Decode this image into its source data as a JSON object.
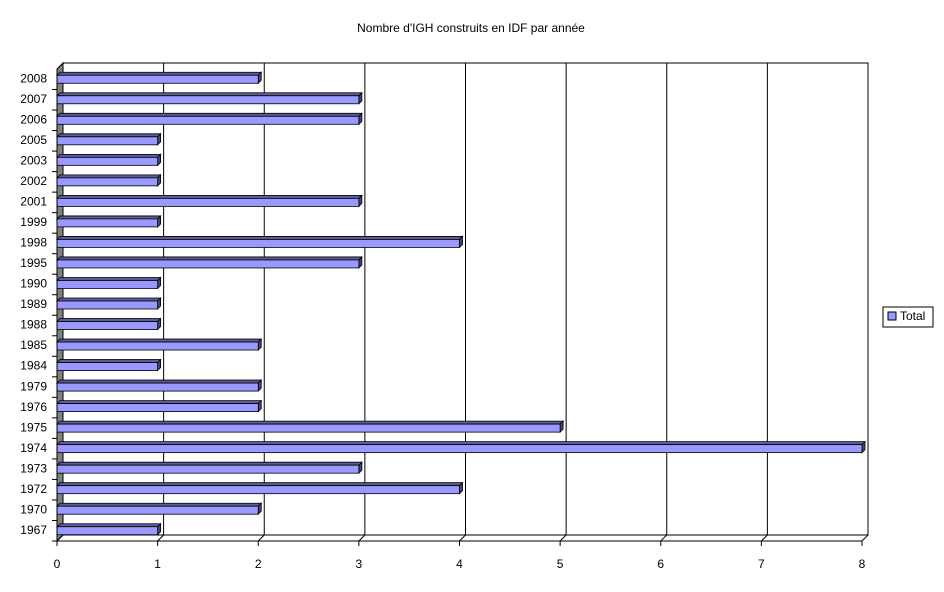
{
  "chart_data": {
    "type": "bar3d-horizontal",
    "title": "Nombre d'IGH construits en IDF par année",
    "categories": [
      "1967",
      "1970",
      "1972",
      "1973",
      "1974",
      "1975",
      "1976",
      "1979",
      "1984",
      "1985",
      "1988",
      "1989",
      "1990",
      "1995",
      "1998",
      "1999",
      "2001",
      "2002",
      "2003",
      "2005",
      "2006",
      "2007",
      "2008"
    ],
    "series": [
      {
        "name": "Total",
        "color": "#9999ff",
        "values": [
          1,
          2,
          4,
          3,
          8,
          5,
          2,
          2,
          1,
          2,
          1,
          1,
          1,
          3,
          4,
          1,
          3,
          1,
          1,
          1,
          3,
          3,
          2
        ]
      }
    ],
    "xlim": [
      0,
      8
    ],
    "xticks": [
      0,
      1,
      2,
      3,
      4,
      5,
      6,
      7,
      8
    ],
    "grid": true,
    "legend_position": "right"
  }
}
